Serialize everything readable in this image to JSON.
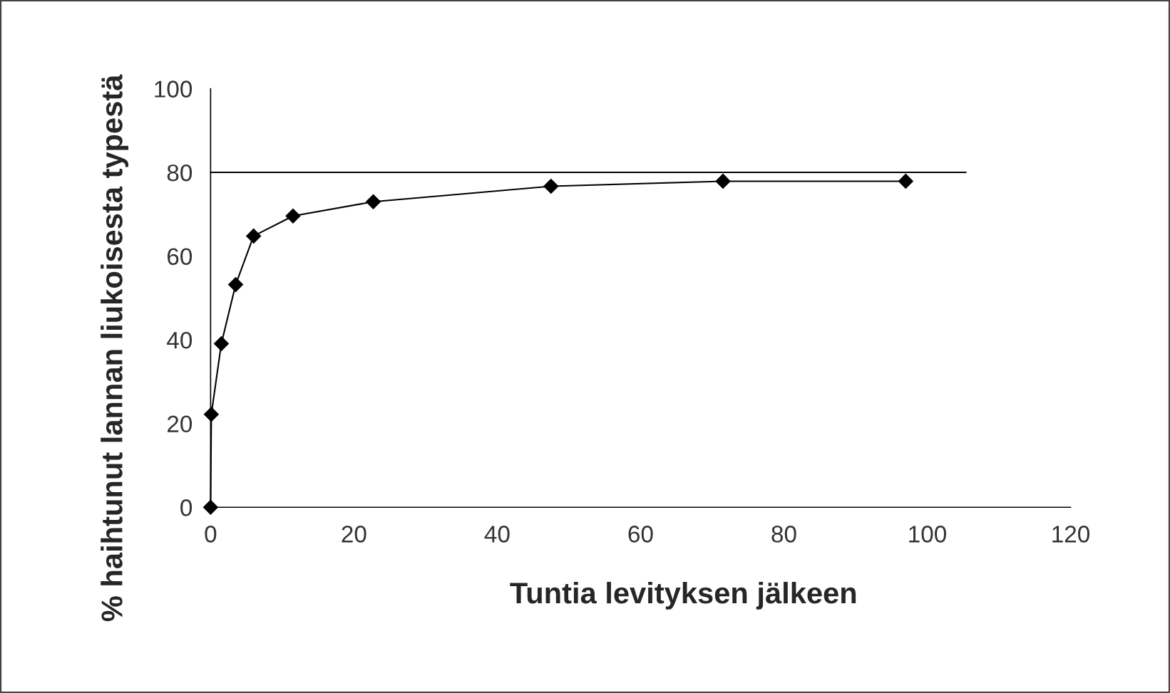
{
  "chart_data": {
    "type": "line",
    "xlabel": "Tuntia levityksen jälkeen",
    "ylabel": "% haihtunut lannan liukoisesta typestä",
    "xlim": [
      0,
      120
    ],
    "xticks": [
      0,
      20,
      40,
      60,
      80,
      100,
      120
    ],
    "ylim": [
      0,
      100
    ],
    "yticks": [
      0,
      20,
      40,
      60,
      80,
      100
    ],
    "grid": false,
    "series": [
      {
        "color": "#000000",
        "marker": "diamond",
        "x": [
          0,
          0.1,
          1.5,
          3.5,
          6,
          11.5,
          22.7,
          47.5,
          71.5,
          97
        ],
        "values": [
          0,
          22.2,
          39.1,
          53.2,
          64.8,
          69.6,
          73.0,
          76.7,
          77.9,
          77.9
        ]
      },
      {
        "color": "#000000",
        "marker": "none",
        "x": [
          0,
          105.4
        ],
        "values": [
          80,
          80
        ]
      }
    ]
  }
}
